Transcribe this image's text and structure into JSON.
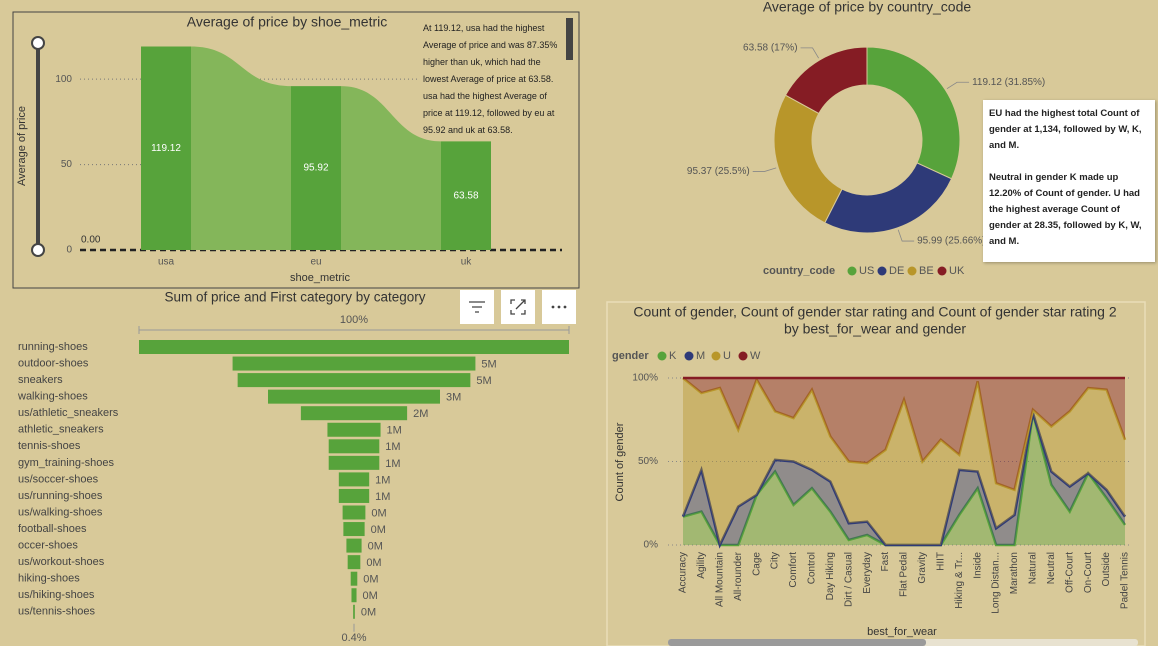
{
  "chart_data": [
    {
      "type": "ribbon",
      "title": "Average of price by shoe_metric",
      "x_label": "shoe_metric",
      "y_label": "Average of price",
      "categories": [
        "usa",
        "eu",
        "uk"
      ],
      "values": [
        119.12,
        95.92,
        63.58
      ],
      "color": "#57a33b",
      "ribbon_color": "#84b65a",
      "ylim": [
        0,
        120
      ],
      "yticks": [
        0,
        50,
        100
      ],
      "grid": true,
      "slider_label": "0.00",
      "narrative": "At 119.12, usa had the highest Average of price and was 87.35% higher than uk, which had the lowest Average of price at 63.58. usa had the highest Average of price at 119.12, followed by eu at 95.92 and uk at 63.58."
    },
    {
      "type": "donut",
      "title": "Average of price by country_code",
      "legend_title": "country_code",
      "categories": [
        "US",
        "DE",
        "BE",
        "UK"
      ],
      "values": [
        119.12,
        95.99,
        95.37,
        63.58
      ],
      "value_labels": [
        "119.12 (31.85%)",
        "95.99 (25.66%)",
        "95.37 (25.5%)",
        "63.58 (17%)"
      ],
      "colors": [
        "#57a33b",
        "#2e3a78",
        "#b8962a",
        "#851c24"
      ],
      "narrative": [
        "EU had the highest total Count of gender at 1,134, followed by W, K, and M.",
        "Neutral in gender K made up 12.20% of Count of gender. U had the highest average Count of gender at 28.35, followed by K, W, and M."
      ]
    },
    {
      "type": "funnel",
      "title": "Sum of price and First category by category",
      "top_label": "100%",
      "bottom_label": "0.4%",
      "color": "#57a33b",
      "categories": [
        "running-shoes",
        "outdoor-shoes",
        "sneakers",
        "walking-shoes",
        "us/athletic_sneakers",
        "athletic_sneakers",
        "tennis-shoes",
        "gym_training-shoes",
        "us/soccer-shoes",
        "us/running-shoes",
        "us/walking-shoes",
        "football-shoes",
        "occer-shoes",
        "us/workout-shoes",
        "hiking-shoes",
        "us/hiking-shoes",
        "us/tennis-shoes"
      ],
      "values": [
        8500000,
        4800000,
        4600000,
        3400000,
        2100000,
        1050000,
        1000000,
        1000000,
        600000,
        600000,
        450000,
        420000,
        300000,
        250000,
        130000,
        100000,
        34000
      ],
      "value_labels": [
        null,
        "5M",
        "5M",
        "3M",
        "2M",
        "1M",
        "1M",
        "1M",
        "1M",
        "1M",
        "0M",
        "0M",
        "0M",
        "0M",
        "0M",
        "0M",
        "0M"
      ]
    },
    {
      "type": "area",
      "stacked": true,
      "title": "Count of gender, Count of gender star rating and Count of gender star rating 2",
      "subtitle": "by best_for_wear and gender",
      "legend_title": "gender",
      "x_label": "best_for_wear",
      "y_label": "Count of gender",
      "categories": [
        "Accuracy",
        "Agility",
        "All Mountain",
        "All-rounder",
        "Cage",
        "City",
        "Comfort",
        "Control",
        "Day Hiking",
        "Dirt / Casual",
        "Everyday",
        "Fast",
        "Flat Pedal",
        "Gravity",
        "HIIT",
        "Hiking & Tr...",
        "Inside",
        "Long Distan...",
        "Marathon",
        "Natural",
        "Neutral",
        "Off-Court",
        "On-Court",
        "Outside",
        "Padel Tennis"
      ],
      "series": [
        {
          "name": "K",
          "color": "#57a33b",
          "values": [
            17,
            20,
            0,
            0,
            30,
            44,
            24,
            34,
            20,
            3,
            6,
            0,
            0,
            0,
            0,
            18,
            34,
            0,
            0,
            79,
            36,
            20,
            43,
            28,
            12
          ]
        },
        {
          "name": "M",
          "color": "#2e3a78",
          "values": [
            0,
            25,
            0,
            23,
            0,
            7,
            26,
            11,
            18,
            10,
            8,
            0,
            0,
            0,
            0,
            27,
            10,
            10,
            18,
            0,
            8,
            15,
            0,
            5,
            5
          ]
        },
        {
          "name": "U",
          "color": "#b8962a",
          "values": [
            83,
            46,
            94,
            46,
            69,
            29,
            26,
            48,
            27,
            37,
            35,
            57,
            87,
            50,
            63,
            9,
            54,
            27,
            15,
            2,
            27,
            45,
            51,
            60,
            46
          ]
        },
        {
          "name": "W",
          "color": "#851c24",
          "values": [
            0,
            9,
            6,
            31,
            1,
            20,
            24,
            7,
            35,
            50,
            51,
            43,
            13,
            50,
            37,
            46,
            2,
            63,
            67,
            19,
            29,
            20,
            6,
            7,
            37
          ]
        }
      ],
      "ylim": [
        0,
        100
      ],
      "yticks": [
        {
          "value": 0,
          "label": "0%"
        },
        {
          "value": 50,
          "label": "50%"
        },
        {
          "value": 100,
          "label": "100%"
        }
      ],
      "grid": true
    }
  ]
}
